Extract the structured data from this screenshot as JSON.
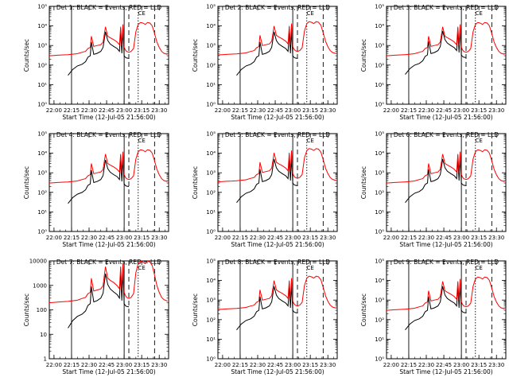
{
  "figure": {
    "background": "#ffffff",
    "series_colors": {
      "events": "#000000",
      "lld": "#ff0000"
    }
  },
  "chart_data": [
    {
      "type": "line",
      "panel": 1,
      "title": "Det 1: BLACK = Events, RED = LLD",
      "xlabel": "Start Time (12-Jul-05 21:56:00)",
      "ylabel": "Counts/sec",
      "ylog": true,
      "yticks": [
        {
          "v": 1,
          "label": "10⁰"
        },
        {
          "v": 10,
          "label": "10¹"
        },
        {
          "v": 100,
          "label": "10²"
        },
        {
          "v": 1000,
          "label": "10³"
        },
        {
          "v": 10000,
          "label": "10⁴"
        },
        {
          "v": 100000,
          "label": "10⁵"
        }
      ],
      "xticks": [
        "22:00",
        "22:15",
        "22:30",
        "22:45",
        "23:00",
        "23:15",
        "23:30"
      ],
      "vlines": [
        {
          "t": "22:15",
          "style": "solid"
        },
        {
          "t": "23:00",
          "style": "solid"
        },
        {
          "t": "23:04",
          "style": "dashed"
        },
        {
          "t": "23:12",
          "style": "dotted"
        },
        {
          "t": "23:26",
          "style": "dashed"
        },
        {
          "t": "23:38",
          "style": "dotted"
        }
      ],
      "annotations": [
        {
          "t": "23:15",
          "text": "CE"
        }
      ]
    },
    {
      "type": "line",
      "panel": 2,
      "title": "Det 2: BLACK = Events, RED = LLD",
      "xlabel": "Start Time (12-Jul-05 21:56:00)",
      "ylabel": "Counts/sec",
      "ylog": true,
      "yticks": [
        {
          "v": 1,
          "label": "10⁰"
        },
        {
          "v": 10,
          "label": "10¹"
        },
        {
          "v": 100,
          "label": "10²"
        },
        {
          "v": 1000,
          "label": "10³"
        },
        {
          "v": 10000,
          "label": "10⁴"
        },
        {
          "v": 100000,
          "label": "10⁵"
        }
      ],
      "xticks": [
        "22:00",
        "22:15",
        "22:30",
        "22:45",
        "23:00",
        "23:15",
        "23:30"
      ],
      "vlines": [
        {
          "t": "22:15",
          "style": "solid"
        },
        {
          "t": "23:00",
          "style": "solid"
        },
        {
          "t": "23:04",
          "style": "dashed"
        },
        {
          "t": "23:12",
          "style": "dotted"
        },
        {
          "t": "23:26",
          "style": "dashed"
        },
        {
          "t": "23:38",
          "style": "dotted"
        }
      ],
      "annotations": [
        {
          "t": "23:15",
          "text": "CE"
        }
      ]
    },
    {
      "type": "line",
      "panel": 3,
      "title": "Det 3: BLACK = Events, RED = LLD",
      "xlabel": "Start Time (12-Jul-05 21:56:00)",
      "ylabel": "Counts/sec",
      "ylog": true,
      "yticks": [
        {
          "v": 1,
          "label": "10⁰"
        },
        {
          "v": 10,
          "label": "10¹"
        },
        {
          "v": 100,
          "label": "10²"
        },
        {
          "v": 1000,
          "label": "10³"
        },
        {
          "v": 10000,
          "label": "10⁴"
        },
        {
          "v": 100000,
          "label": "10⁵"
        }
      ],
      "xticks": [
        "22:00",
        "22:15",
        "22:30",
        "22:45",
        "23:00",
        "23:15",
        "23:30"
      ],
      "vlines": [
        {
          "t": "22:15",
          "style": "solid"
        },
        {
          "t": "23:00",
          "style": "solid"
        },
        {
          "t": "23:04",
          "style": "dashed"
        },
        {
          "t": "23:12",
          "style": "dotted"
        },
        {
          "t": "23:26",
          "style": "dashed"
        },
        {
          "t": "23:38",
          "style": "dotted"
        }
      ],
      "annotations": [
        {
          "t": "23:15",
          "text": "CE"
        }
      ]
    },
    {
      "type": "line",
      "panel": 4,
      "title": "Det 4: BLACK = Events, RED = LLD",
      "xlabel": "Start Time (12-Jul-05 21:56:00)",
      "ylabel": "Counts/sec",
      "ylog": true,
      "yticks": [
        {
          "v": 1,
          "label": "10⁰"
        },
        {
          "v": 10,
          "label": "10¹"
        },
        {
          "v": 100,
          "label": "10²"
        },
        {
          "v": 1000,
          "label": "10³"
        },
        {
          "v": 10000,
          "label": "10⁴"
        },
        {
          "v": 100000,
          "label": "10⁵"
        }
      ],
      "xticks": [
        "22:00",
        "22:15",
        "22:30",
        "22:45",
        "23:00",
        "23:15",
        "23:30"
      ],
      "vlines": [
        {
          "t": "22:15",
          "style": "solid"
        },
        {
          "t": "23:00",
          "style": "solid"
        },
        {
          "t": "23:04",
          "style": "dashed"
        },
        {
          "t": "23:12",
          "style": "dotted"
        },
        {
          "t": "23:26",
          "style": "dashed"
        },
        {
          "t": "23:38",
          "style": "dotted"
        }
      ],
      "annotations": [
        {
          "t": "23:15",
          "text": "CE"
        }
      ]
    },
    {
      "type": "line",
      "panel": 5,
      "title": "Det 5: BLACK = Events, RED = LLD",
      "xlabel": "Start Time (12-Jul-05 21:56:00)",
      "ylabel": "Counts/sec",
      "ylog": true,
      "yticks": [
        {
          "v": 1,
          "label": "10⁰"
        },
        {
          "v": 10,
          "label": "10¹"
        },
        {
          "v": 100,
          "label": "10²"
        },
        {
          "v": 1000,
          "label": "10³"
        },
        {
          "v": 10000,
          "label": "10⁴"
        },
        {
          "v": 100000,
          "label": "10⁵"
        }
      ],
      "xticks": [
        "22:00",
        "22:15",
        "22:30",
        "22:45",
        "23:00",
        "23:15",
        "23:30"
      ],
      "vlines": [
        {
          "t": "22:15",
          "style": "solid"
        },
        {
          "t": "23:00",
          "style": "solid"
        },
        {
          "t": "23:04",
          "style": "dashed"
        },
        {
          "t": "23:12",
          "style": "dotted"
        },
        {
          "t": "23:26",
          "style": "dashed"
        },
        {
          "t": "23:38",
          "style": "dotted"
        }
      ],
      "annotations": [
        {
          "t": "23:15",
          "text": "CE"
        }
      ]
    },
    {
      "type": "line",
      "panel": 6,
      "title": "Det 6: BLACK = Events, RED = LLD",
      "xlabel": "Start Time (12-Jul-05 21:56:00)",
      "ylabel": "Counts/sec",
      "ylog": true,
      "yticks": [
        {
          "v": 1,
          "label": "10⁰"
        },
        {
          "v": 10,
          "label": "10¹"
        },
        {
          "v": 100,
          "label": "10²"
        },
        {
          "v": 1000,
          "label": "10³"
        },
        {
          "v": 10000,
          "label": "10⁴"
        },
        {
          "v": 100000,
          "label": "10⁵"
        }
      ],
      "xticks": [
        "22:00",
        "22:15",
        "22:30",
        "22:45",
        "23:00",
        "23:15",
        "23:30"
      ],
      "vlines": [
        {
          "t": "22:15",
          "style": "solid"
        },
        {
          "t": "23:00",
          "style": "solid"
        },
        {
          "t": "23:04",
          "style": "dashed"
        },
        {
          "t": "23:12",
          "style": "dotted"
        },
        {
          "t": "23:26",
          "style": "dashed"
        },
        {
          "t": "23:38",
          "style": "dotted"
        }
      ],
      "annotations": [
        {
          "t": "23:15",
          "text": "CE"
        }
      ]
    },
    {
      "type": "line",
      "panel": 7,
      "title": "Det 7: BLACK = Events, RED = LLD",
      "xlabel": "Start Time (12-Jul-05 21:56:00)",
      "ylabel": "Counts/sec",
      "ylog": true,
      "yticks": [
        {
          "v": 1,
          "label": "1"
        },
        {
          "v": 10,
          "label": "10"
        },
        {
          "v": 100,
          "label": "100"
        },
        {
          "v": 1000,
          "label": "1000"
        },
        {
          "v": 10000,
          "label": "10000"
        }
      ],
      "xticks": [
        "22:00",
        "22:15",
        "22:30",
        "22:45",
        "23:00",
        "23:15",
        "23:30"
      ],
      "vlines": [
        {
          "t": "22:15",
          "style": "solid"
        },
        {
          "t": "23:00",
          "style": "solid"
        },
        {
          "t": "23:04",
          "style": "dashed"
        },
        {
          "t": "23:12",
          "style": "dotted"
        },
        {
          "t": "23:26",
          "style": "dashed"
        },
        {
          "t": "23:38",
          "style": "dotted"
        }
      ],
      "annotations": [
        {
          "t": "23:15",
          "text": "CE"
        }
      ]
    },
    {
      "type": "line",
      "panel": 8,
      "title": "Det 8: BLACK = Events, RED = LLD",
      "xlabel": "Start Time (12-Jul-05 21:56:00)",
      "ylabel": "Counts/sec",
      "ylog": true,
      "yticks": [
        {
          "v": 1,
          "label": "10⁰"
        },
        {
          "v": 10,
          "label": "10¹"
        },
        {
          "v": 100,
          "label": "10²"
        },
        {
          "v": 1000,
          "label": "10³"
        },
        {
          "v": 10000,
          "label": "10⁴"
        },
        {
          "v": 100000,
          "label": "10⁵"
        }
      ],
      "xticks": [
        "22:00",
        "22:15",
        "22:30",
        "22:45",
        "23:00",
        "23:15",
        "23:30"
      ],
      "vlines": [
        {
          "t": "22:15",
          "style": "solid"
        },
        {
          "t": "23:00",
          "style": "solid"
        },
        {
          "t": "23:04",
          "style": "dashed"
        },
        {
          "t": "23:12",
          "style": "dotted"
        },
        {
          "t": "23:26",
          "style": "dashed"
        },
        {
          "t": "23:38",
          "style": "dotted"
        }
      ],
      "annotations": [
        {
          "t": "23:15",
          "text": "CE"
        }
      ]
    },
    {
      "type": "line",
      "panel": 9,
      "title": "Det 9: BLACK = Events, RED = LLD",
      "xlabel": "Start Time (12-Jul-05 21:56:00)",
      "ylabel": "Counts/sec",
      "ylog": true,
      "yticks": [
        {
          "v": 1,
          "label": "10⁰"
        },
        {
          "v": 10,
          "label": "10¹"
        },
        {
          "v": 100,
          "label": "10²"
        },
        {
          "v": 1000,
          "label": "10³"
        },
        {
          "v": 10000,
          "label": "10⁴"
        },
        {
          "v": 100000,
          "label": "10⁵"
        }
      ],
      "xticks": [
        "22:00",
        "22:15",
        "22:30",
        "22:45",
        "23:00",
        "23:15",
        "23:30"
      ],
      "vlines": [
        {
          "t": "22:15",
          "style": "solid"
        },
        {
          "t": "23:00",
          "style": "solid"
        },
        {
          "t": "23:04",
          "style": "dashed"
        },
        {
          "t": "23:12",
          "style": "dotted"
        },
        {
          "t": "23:26",
          "style": "dashed"
        },
        {
          "t": "23:38",
          "style": "dotted"
        }
      ],
      "annotations": [
        {
          "t": "23:15",
          "text": "CE"
        }
      ]
    }
  ],
  "series_profile": {
    "times": [
      "21:56",
      "22:00",
      "22:03",
      "22:08",
      "22:12",
      "22:16",
      "22:20",
      "22:24",
      "22:27",
      "22:29",
      "22:31",
      "22:32",
      "22:34",
      "22:37",
      "22:40",
      "22:42",
      "22:44",
      "22:46",
      "22:48",
      "22:51",
      "22:54",
      "22:56",
      "22:57",
      "22:58",
      "22:59",
      "23:00",
      "23:01",
      "23:02",
      "23:04",
      "23:06",
      "23:08",
      "23:10",
      "23:12",
      "23:14",
      "23:16",
      "23:18",
      "23:20",
      "23:22",
      "23:24",
      "23:26",
      "23:28",
      "23:30",
      "23:32",
      "23:34",
      "23:37"
    ],
    "lld": [
      300,
      310,
      320,
      330,
      340,
      360,
      380,
      450,
      500,
      700,
      800,
      3000,
      900,
      1000,
      1100,
      1500,
      9000,
      3000,
      2500,
      2000,
      1500,
      1100,
      9000,
      1000,
      12000,
      800,
      600,
      500,
      450,
      500,
      700,
      5000,
      12000,
      15000,
      14000,
      12000,
      15000,
      14000,
      10000,
      4000,
      1500,
      800,
      500,
      400,
      350
    ],
    "events": [
      null,
      null,
      null,
      null,
      30,
      60,
      90,
      110,
      150,
      250,
      300,
      1500,
      350,
      400,
      500,
      800,
      5000,
      1800,
      1200,
      900,
      700,
      500,
      5000,
      400,
      6000,
      300,
      250,
      230,
      220,
      null,
      null,
      null,
      null,
      null,
      null,
      null,
      null,
      null,
      null,
      null,
      null,
      null,
      null,
      null,
      null
    ]
  }
}
